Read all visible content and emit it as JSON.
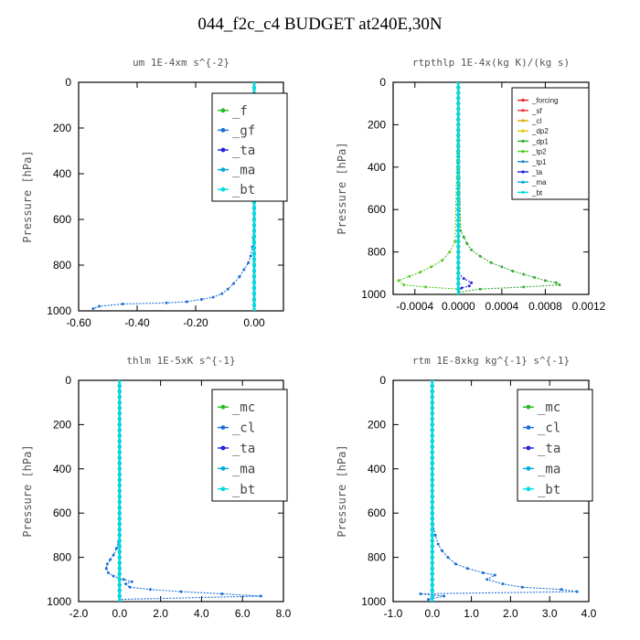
{
  "title": "044_f2c_c4  BUDGET at240E,30N",
  "chart_data": [
    {
      "type": "line",
      "title": "um   1E-4xm s^{-2}",
      "ylabel": "Pressure [hPa]",
      "xlim": [
        -0.6,
        0.1
      ],
      "ylim": [
        1000,
        0
      ],
      "xticks": [
        "-0.60",
        "-0.40",
        "-0.20",
        "0.00"
      ],
      "xtick_values": [
        -0.6,
        -0.4,
        -0.2,
        0.0
      ],
      "yticks": [
        "0",
        "200",
        "400",
        "600",
        "800",
        "1000"
      ],
      "ytick_values": [
        0,
        200,
        400,
        600,
        800,
        1000
      ],
      "legend_position": "top-right",
      "series": [
        {
          "name": "_f",
          "color": "#22bb22",
          "x": [
            0,
            0
          ],
          "y": [
            0,
            1000
          ]
        },
        {
          "name": "_gf",
          "color": "#1a6fd6",
          "x": [
            0.0,
            0.0,
            -0.003,
            -0.006,
            -0.012,
            -0.02,
            -0.035,
            -0.05,
            -0.07,
            -0.09,
            -0.11,
            -0.14,
            -0.18,
            -0.23,
            -0.3,
            -0.45,
            -0.53,
            -0.55
          ],
          "y": [
            0,
            600,
            680,
            720,
            760,
            790,
            820,
            850,
            880,
            905,
            925,
            940,
            950,
            960,
            965,
            970,
            980,
            990
          ]
        },
        {
          "name": "_ta",
          "color": "#2222dd",
          "x": [
            0,
            0
          ],
          "y": [
            0,
            1000
          ]
        },
        {
          "name": "_ma",
          "color": "#00aadd",
          "x": [
            0,
            0
          ],
          "y": [
            0,
            1000
          ]
        },
        {
          "name": "_bt",
          "color": "#00dddd",
          "x": [
            0,
            0
          ],
          "y": [
            0,
            1000
          ]
        }
      ]
    },
    {
      "type": "line",
      "title": "rtpthlp   1E-4x(kg K)/(kg s)",
      "ylabel": "Pressure [hPa]",
      "xlim": [
        -0.0006,
        0.0012
      ],
      "ylim": [
        1000,
        0
      ],
      "xticks": [
        "-0.0004",
        "0.0000",
        "0.0004",
        "0.0008",
        "0.0012"
      ],
      "xtick_values": [
        -0.0004,
        0.0,
        0.0004,
        0.0008,
        0.0012
      ],
      "yticks": [
        "0",
        "200",
        "400",
        "600",
        "800",
        "1000"
      ],
      "ytick_values": [
        0,
        200,
        400,
        600,
        800,
        1000
      ],
      "legend_position": "top-right",
      "series": [
        {
          "name": "_forcing",
          "color": "#dd2222",
          "x": [
            0,
            0
          ],
          "y": [
            0,
            1000
          ]
        },
        {
          "name": "_sf",
          "color": "#ee3333",
          "x": [
            0,
            0
          ],
          "y": [
            0,
            1000
          ]
        },
        {
          "name": "_cl",
          "color": "#ddaa00",
          "x": [
            0,
            0
          ],
          "y": [
            0,
            1000
          ]
        },
        {
          "name": "_dp2",
          "color": "#ddcc00",
          "x": [
            0,
            0
          ],
          "y": [
            0,
            1000
          ]
        },
        {
          "name": "_dp1",
          "color": "#33aa33",
          "x": [
            0.0,
            2e-05,
            5e-05,
            8e-05,
            0.00012,
            0.0002,
            0.0003,
            0.0004,
            0.0005,
            0.0006,
            0.0007,
            0.0008,
            0.0009,
            0.00093,
            0.0006,
            0.0002,
            0.0
          ],
          "y": [
            0,
            700,
            730,
            760,
            790,
            820,
            850,
            870,
            890,
            905,
            920,
            935,
            945,
            955,
            965,
            975,
            990
          ]
        },
        {
          "name": "_tp2",
          "color": "#55cc22",
          "x": [
            0.0,
            -3e-05,
            -8e-05,
            -0.00015,
            -0.00025,
            -0.00035,
            -0.00045,
            -0.00055,
            -0.0005,
            -0.0003,
            0.0
          ],
          "y": [
            0,
            750,
            800,
            840,
            870,
            895,
            915,
            935,
            955,
            965,
            975
          ]
        },
        {
          "name": "_tp1",
          "color": "#2288cc",
          "x": [
            0,
            0
          ],
          "y": [
            0,
            1000
          ]
        },
        {
          "name": "_ta",
          "color": "#2222dd",
          "x": [
            0.0,
            5e-05,
            0.00012,
            0.0001,
            3e-05,
            0.0
          ],
          "y": [
            900,
            925,
            945,
            960,
            970,
            980
          ]
        },
        {
          "name": "_ma",
          "color": "#00aadd",
          "x": [
            0,
            0
          ],
          "y": [
            0,
            1000
          ]
        },
        {
          "name": "_bt",
          "color": "#00dddd",
          "x": [
            0,
            0
          ],
          "y": [
            0,
            1000
          ]
        }
      ]
    },
    {
      "type": "line",
      "title": "thlm   1E-5xK s^{-1}",
      "ylabel": "Pressure [hPa]",
      "xlim": [
        -2.0,
        8.0
      ],
      "ylim": [
        1000,
        0
      ],
      "xticks": [
        "-2.0",
        "0.0",
        "2.0",
        "4.0",
        "6.0",
        "8.0"
      ],
      "xtick_values": [
        -2,
        0,
        2,
        4,
        6,
        8
      ],
      "yticks": [
        "0",
        "200",
        "400",
        "600",
        "800",
        "1000"
      ],
      "ytick_values": [
        0,
        200,
        400,
        600,
        800,
        1000
      ],
      "legend_position": "top-right",
      "series": [
        {
          "name": "_mc",
          "color": "#22bb22",
          "x": [
            0,
            0
          ],
          "y": [
            0,
            1000
          ]
        },
        {
          "name": "_cl",
          "color": "#1a6fd6",
          "x": [
            0.0,
            0.0,
            -0.05,
            -0.15,
            -0.3,
            -0.45,
            -0.6,
            -0.65,
            -0.55,
            -0.3,
            0.2,
            0.6,
            0.3,
            0.5,
            1.5,
            3.0,
            5.0,
            6.9,
            0.0
          ],
          "y": [
            0,
            700,
            730,
            760,
            790,
            810,
            830,
            850,
            870,
            885,
            900,
            910,
            920,
            935,
            945,
            955,
            965,
            975,
            990
          ]
        },
        {
          "name": "_ta",
          "color": "#2222dd",
          "x": [
            0,
            0
          ],
          "y": [
            0,
            1000
          ]
        },
        {
          "name": "_ma",
          "color": "#00aadd",
          "x": [
            0,
            0
          ],
          "y": [
            0,
            1000
          ]
        },
        {
          "name": "_bt",
          "color": "#00dddd",
          "x": [
            0,
            0
          ],
          "y": [
            0,
            1000
          ]
        }
      ]
    },
    {
      "type": "line",
      "title": "rtm   1E-8xkg kg^{-1} s^{-1}",
      "ylabel": "Pressure [hPa]",
      "xlim": [
        -1.0,
        4.0
      ],
      "ylim": [
        1000,
        0
      ],
      "xticks": [
        "-1.0",
        "0.0",
        "1.0",
        "2.0",
        "3.0",
        "4.0"
      ],
      "xtick_values": [
        -1,
        0,
        1,
        2,
        3,
        4
      ],
      "yticks": [
        "0",
        "200",
        "400",
        "600",
        "800",
        "1000"
      ],
      "ytick_values": [
        0,
        200,
        400,
        600,
        800,
        1000
      ],
      "legend_position": "top-right",
      "series": [
        {
          "name": "_mc",
          "color": "#22bb22",
          "x": [
            0,
            0
          ],
          "y": [
            0,
            1000
          ]
        },
        {
          "name": "_cl",
          "color": "#1a6fd6",
          "x": [
            0.0,
            0.02,
            0.08,
            0.15,
            0.25,
            0.4,
            0.6,
            0.9,
            1.3,
            1.6,
            1.4,
            1.8,
            2.3,
            3.3,
            3.7,
            -0.3,
            0.3,
            -0.1
          ],
          "y": [
            0,
            650,
            700,
            740,
            770,
            800,
            830,
            850,
            870,
            880,
            900,
            920,
            935,
            945,
            955,
            965,
            975,
            990
          ]
        },
        {
          "name": "_ta",
          "color": "#2222dd",
          "x": [
            0,
            0
          ],
          "y": [
            0,
            1000
          ]
        },
        {
          "name": "_ma",
          "color": "#00aadd",
          "x": [
            0,
            0
          ],
          "y": [
            0,
            1000
          ]
        },
        {
          "name": "_bt",
          "color": "#00dddd",
          "x": [
            0,
            0
          ],
          "y": [
            0,
            1000
          ]
        }
      ]
    }
  ]
}
